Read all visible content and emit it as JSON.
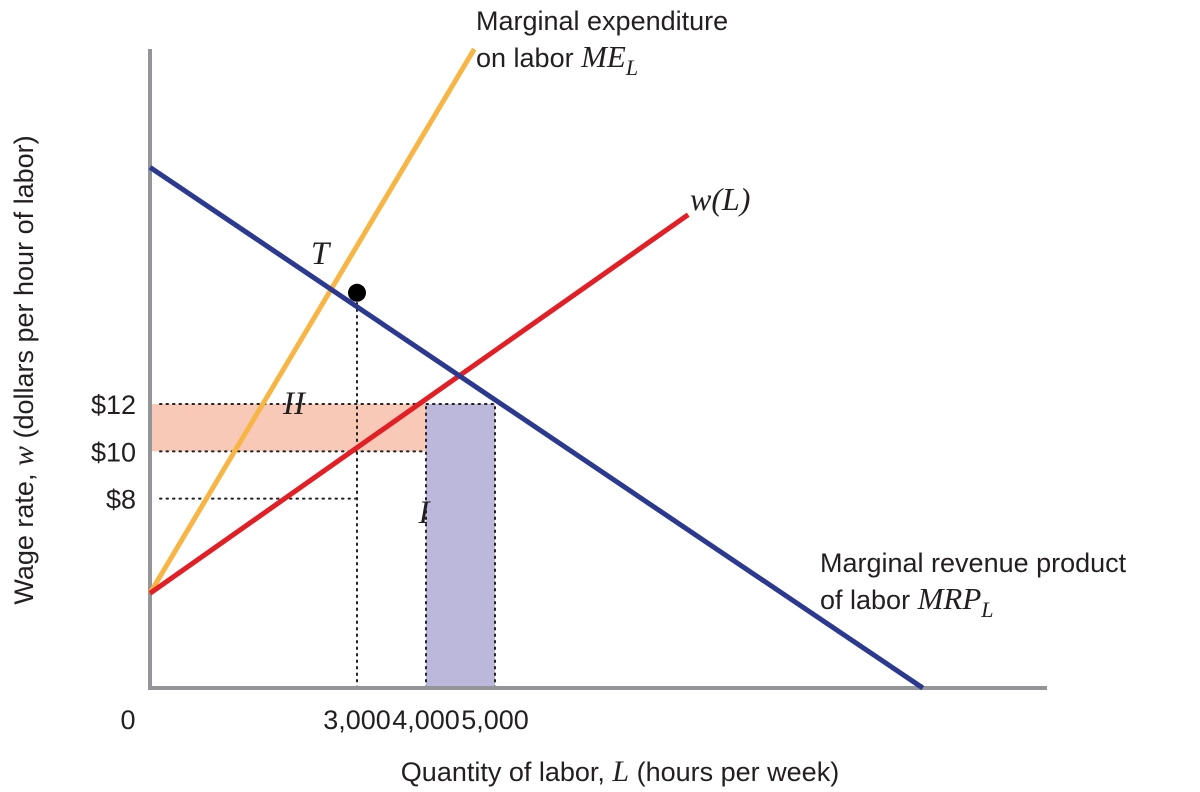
{
  "chart_data": {
    "type": "line",
    "xlabel": {
      "pre": "Quantity of labor, ",
      "var": "L",
      "post": " (hours per week)"
    },
    "ylabel": {
      "pre": "Wage rate, ",
      "var": "w",
      "post": " (dollars per hour of labor)"
    },
    "x_ticks": [
      {
        "value": 0,
        "label": "0"
      },
      {
        "value": 3000,
        "label": "3,000"
      },
      {
        "value": 4000,
        "label": "4,000"
      },
      {
        "value": 5000,
        "label": "5,000"
      }
    ],
    "y_ticks": [
      {
        "value": 8,
        "label": "$8"
      },
      {
        "value": 10,
        "label": "$10"
      },
      {
        "value": 12,
        "label": "$12"
      }
    ],
    "xlim": [
      0,
      13000
    ],
    "ylim": [
      0,
      27
    ],
    "series": [
      {
        "key": "mel",
        "color": "#f6b545",
        "x": [
          0,
          4700
        ],
        "y": [
          4,
          27
        ],
        "label_lines": [
          "Marginal expenditure",
          "on labor "
        ],
        "label_math": "ME",
        "label_sub": "L"
      },
      {
        "key": "wl",
        "color": "#e31f26",
        "x": [
          0,
          7800
        ],
        "y": [
          4,
          20
        ],
        "label_var": "w",
        "label_rest": "(L)"
      },
      {
        "key": "mrp",
        "color": "#2b3990",
        "x": [
          0,
          11200
        ],
        "y": [
          22,
          0
        ],
        "label_lines": [
          "Marginal revenue product",
          "of labor "
        ],
        "label_math": "MRP",
        "label_sub": "L"
      }
    ],
    "regions": [
      {
        "key": "II",
        "label": "II",
        "color": "#f9c9b7",
        "x": [
          0,
          4000
        ],
        "y": [
          10,
          12
        ]
      },
      {
        "key": "I",
        "label": "I",
        "color": "#bcb8db",
        "x": [
          4000,
          5000
        ],
        "y": [
          0,
          12
        ]
      }
    ],
    "point": {
      "label": "T",
      "x": 3000,
      "y": 16.7
    },
    "dotted_guides": [
      {
        "x": [
          0,
          5000
        ],
        "y": [
          12,
          12
        ]
      },
      {
        "x": [
          0,
          4000
        ],
        "y": [
          10,
          10
        ]
      },
      {
        "x": [
          0,
          3000
        ],
        "y": [
          8,
          8
        ]
      },
      {
        "x": [
          3000,
          3000
        ],
        "y": [
          0,
          16.7
        ]
      },
      {
        "x": [
          4000,
          4000
        ],
        "y": [
          0,
          12
        ]
      },
      {
        "x": [
          5000,
          5000
        ],
        "y": [
          0,
          12
        ]
      }
    ],
    "axis_color": "#939598"
  }
}
